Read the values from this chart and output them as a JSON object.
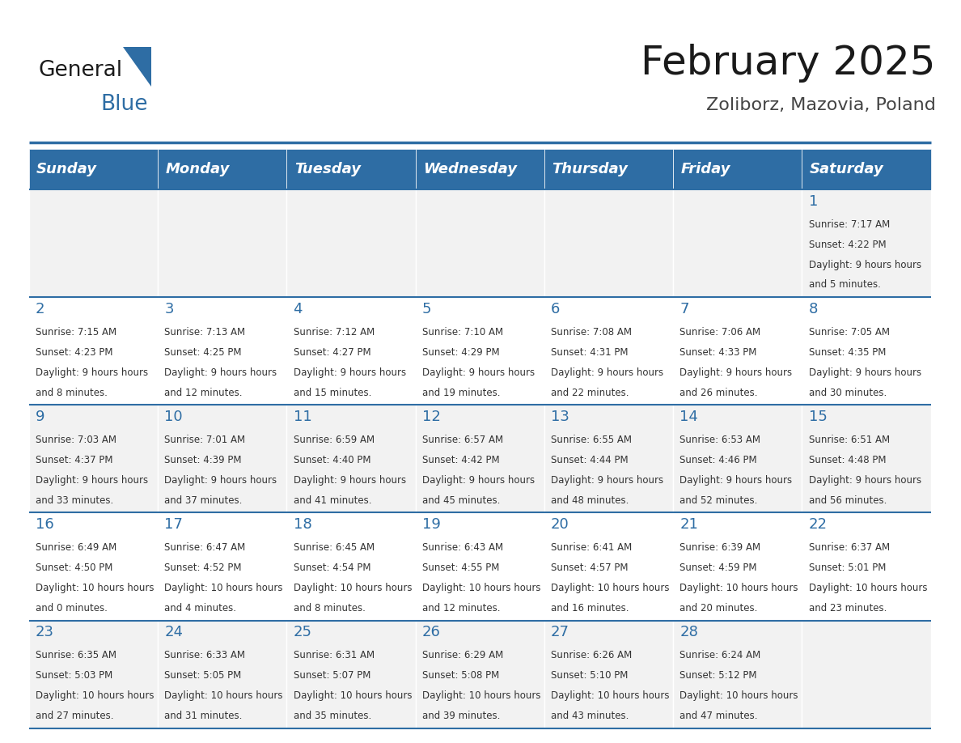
{
  "title": "February 2025",
  "subtitle": "Zoliborz, Mazovia, Poland",
  "days_of_week": [
    "Sunday",
    "Monday",
    "Tuesday",
    "Wednesday",
    "Thursday",
    "Friday",
    "Saturday"
  ],
  "header_bg": "#2e6da4",
  "header_text": "#ffffff",
  "separator_color": "#2e6da4",
  "text_color": "#333333",
  "day_number_color": "#2e6da4",
  "calendar_data": [
    [
      null,
      null,
      null,
      null,
      null,
      null,
      {
        "day": 1,
        "sunrise": "7:17 AM",
        "sunset": "4:22 PM",
        "daylight": "9 hours and 5 minutes."
      }
    ],
    [
      {
        "day": 2,
        "sunrise": "7:15 AM",
        "sunset": "4:23 PM",
        "daylight": "9 hours and 8 minutes."
      },
      {
        "day": 3,
        "sunrise": "7:13 AM",
        "sunset": "4:25 PM",
        "daylight": "9 hours and 12 minutes."
      },
      {
        "day": 4,
        "sunrise": "7:12 AM",
        "sunset": "4:27 PM",
        "daylight": "9 hours and 15 minutes."
      },
      {
        "day": 5,
        "sunrise": "7:10 AM",
        "sunset": "4:29 PM",
        "daylight": "9 hours and 19 minutes."
      },
      {
        "day": 6,
        "sunrise": "7:08 AM",
        "sunset": "4:31 PM",
        "daylight": "9 hours and 22 minutes."
      },
      {
        "day": 7,
        "sunrise": "7:06 AM",
        "sunset": "4:33 PM",
        "daylight": "9 hours and 26 minutes."
      },
      {
        "day": 8,
        "sunrise": "7:05 AM",
        "sunset": "4:35 PM",
        "daylight": "9 hours and 30 minutes."
      }
    ],
    [
      {
        "day": 9,
        "sunrise": "7:03 AM",
        "sunset": "4:37 PM",
        "daylight": "9 hours and 33 minutes."
      },
      {
        "day": 10,
        "sunrise": "7:01 AM",
        "sunset": "4:39 PM",
        "daylight": "9 hours and 37 minutes."
      },
      {
        "day": 11,
        "sunrise": "6:59 AM",
        "sunset": "4:40 PM",
        "daylight": "9 hours and 41 minutes."
      },
      {
        "day": 12,
        "sunrise": "6:57 AM",
        "sunset": "4:42 PM",
        "daylight": "9 hours and 45 minutes."
      },
      {
        "day": 13,
        "sunrise": "6:55 AM",
        "sunset": "4:44 PM",
        "daylight": "9 hours and 48 minutes."
      },
      {
        "day": 14,
        "sunrise": "6:53 AM",
        "sunset": "4:46 PM",
        "daylight": "9 hours and 52 minutes."
      },
      {
        "day": 15,
        "sunrise": "6:51 AM",
        "sunset": "4:48 PM",
        "daylight": "9 hours and 56 minutes."
      }
    ],
    [
      {
        "day": 16,
        "sunrise": "6:49 AM",
        "sunset": "4:50 PM",
        "daylight": "10 hours and 0 minutes."
      },
      {
        "day": 17,
        "sunrise": "6:47 AM",
        "sunset": "4:52 PM",
        "daylight": "10 hours and 4 minutes."
      },
      {
        "day": 18,
        "sunrise": "6:45 AM",
        "sunset": "4:54 PM",
        "daylight": "10 hours and 8 minutes."
      },
      {
        "day": 19,
        "sunrise": "6:43 AM",
        "sunset": "4:55 PM",
        "daylight": "10 hours and 12 minutes."
      },
      {
        "day": 20,
        "sunrise": "6:41 AM",
        "sunset": "4:57 PM",
        "daylight": "10 hours and 16 minutes."
      },
      {
        "day": 21,
        "sunrise": "6:39 AM",
        "sunset": "4:59 PM",
        "daylight": "10 hours and 20 minutes."
      },
      {
        "day": 22,
        "sunrise": "6:37 AM",
        "sunset": "5:01 PM",
        "daylight": "10 hours and 23 minutes."
      }
    ],
    [
      {
        "day": 23,
        "sunrise": "6:35 AM",
        "sunset": "5:03 PM",
        "daylight": "10 hours and 27 minutes."
      },
      {
        "day": 24,
        "sunrise": "6:33 AM",
        "sunset": "5:05 PM",
        "daylight": "10 hours and 31 minutes."
      },
      {
        "day": 25,
        "sunrise": "6:31 AM",
        "sunset": "5:07 PM",
        "daylight": "10 hours and 35 minutes."
      },
      {
        "day": 26,
        "sunrise": "6:29 AM",
        "sunset": "5:08 PM",
        "daylight": "10 hours and 39 minutes."
      },
      {
        "day": 27,
        "sunrise": "6:26 AM",
        "sunset": "5:10 PM",
        "daylight": "10 hours and 43 minutes."
      },
      {
        "day": 28,
        "sunrise": "6:24 AM",
        "sunset": "5:12 PM",
        "daylight": "10 hours and 47 minutes."
      },
      null
    ]
  ],
  "logo_text1": "General",
  "logo_text2": "Blue",
  "logo_triangle_color": "#2e6da4",
  "fig_width": 11.88,
  "fig_height": 9.18,
  "dpi": 100
}
